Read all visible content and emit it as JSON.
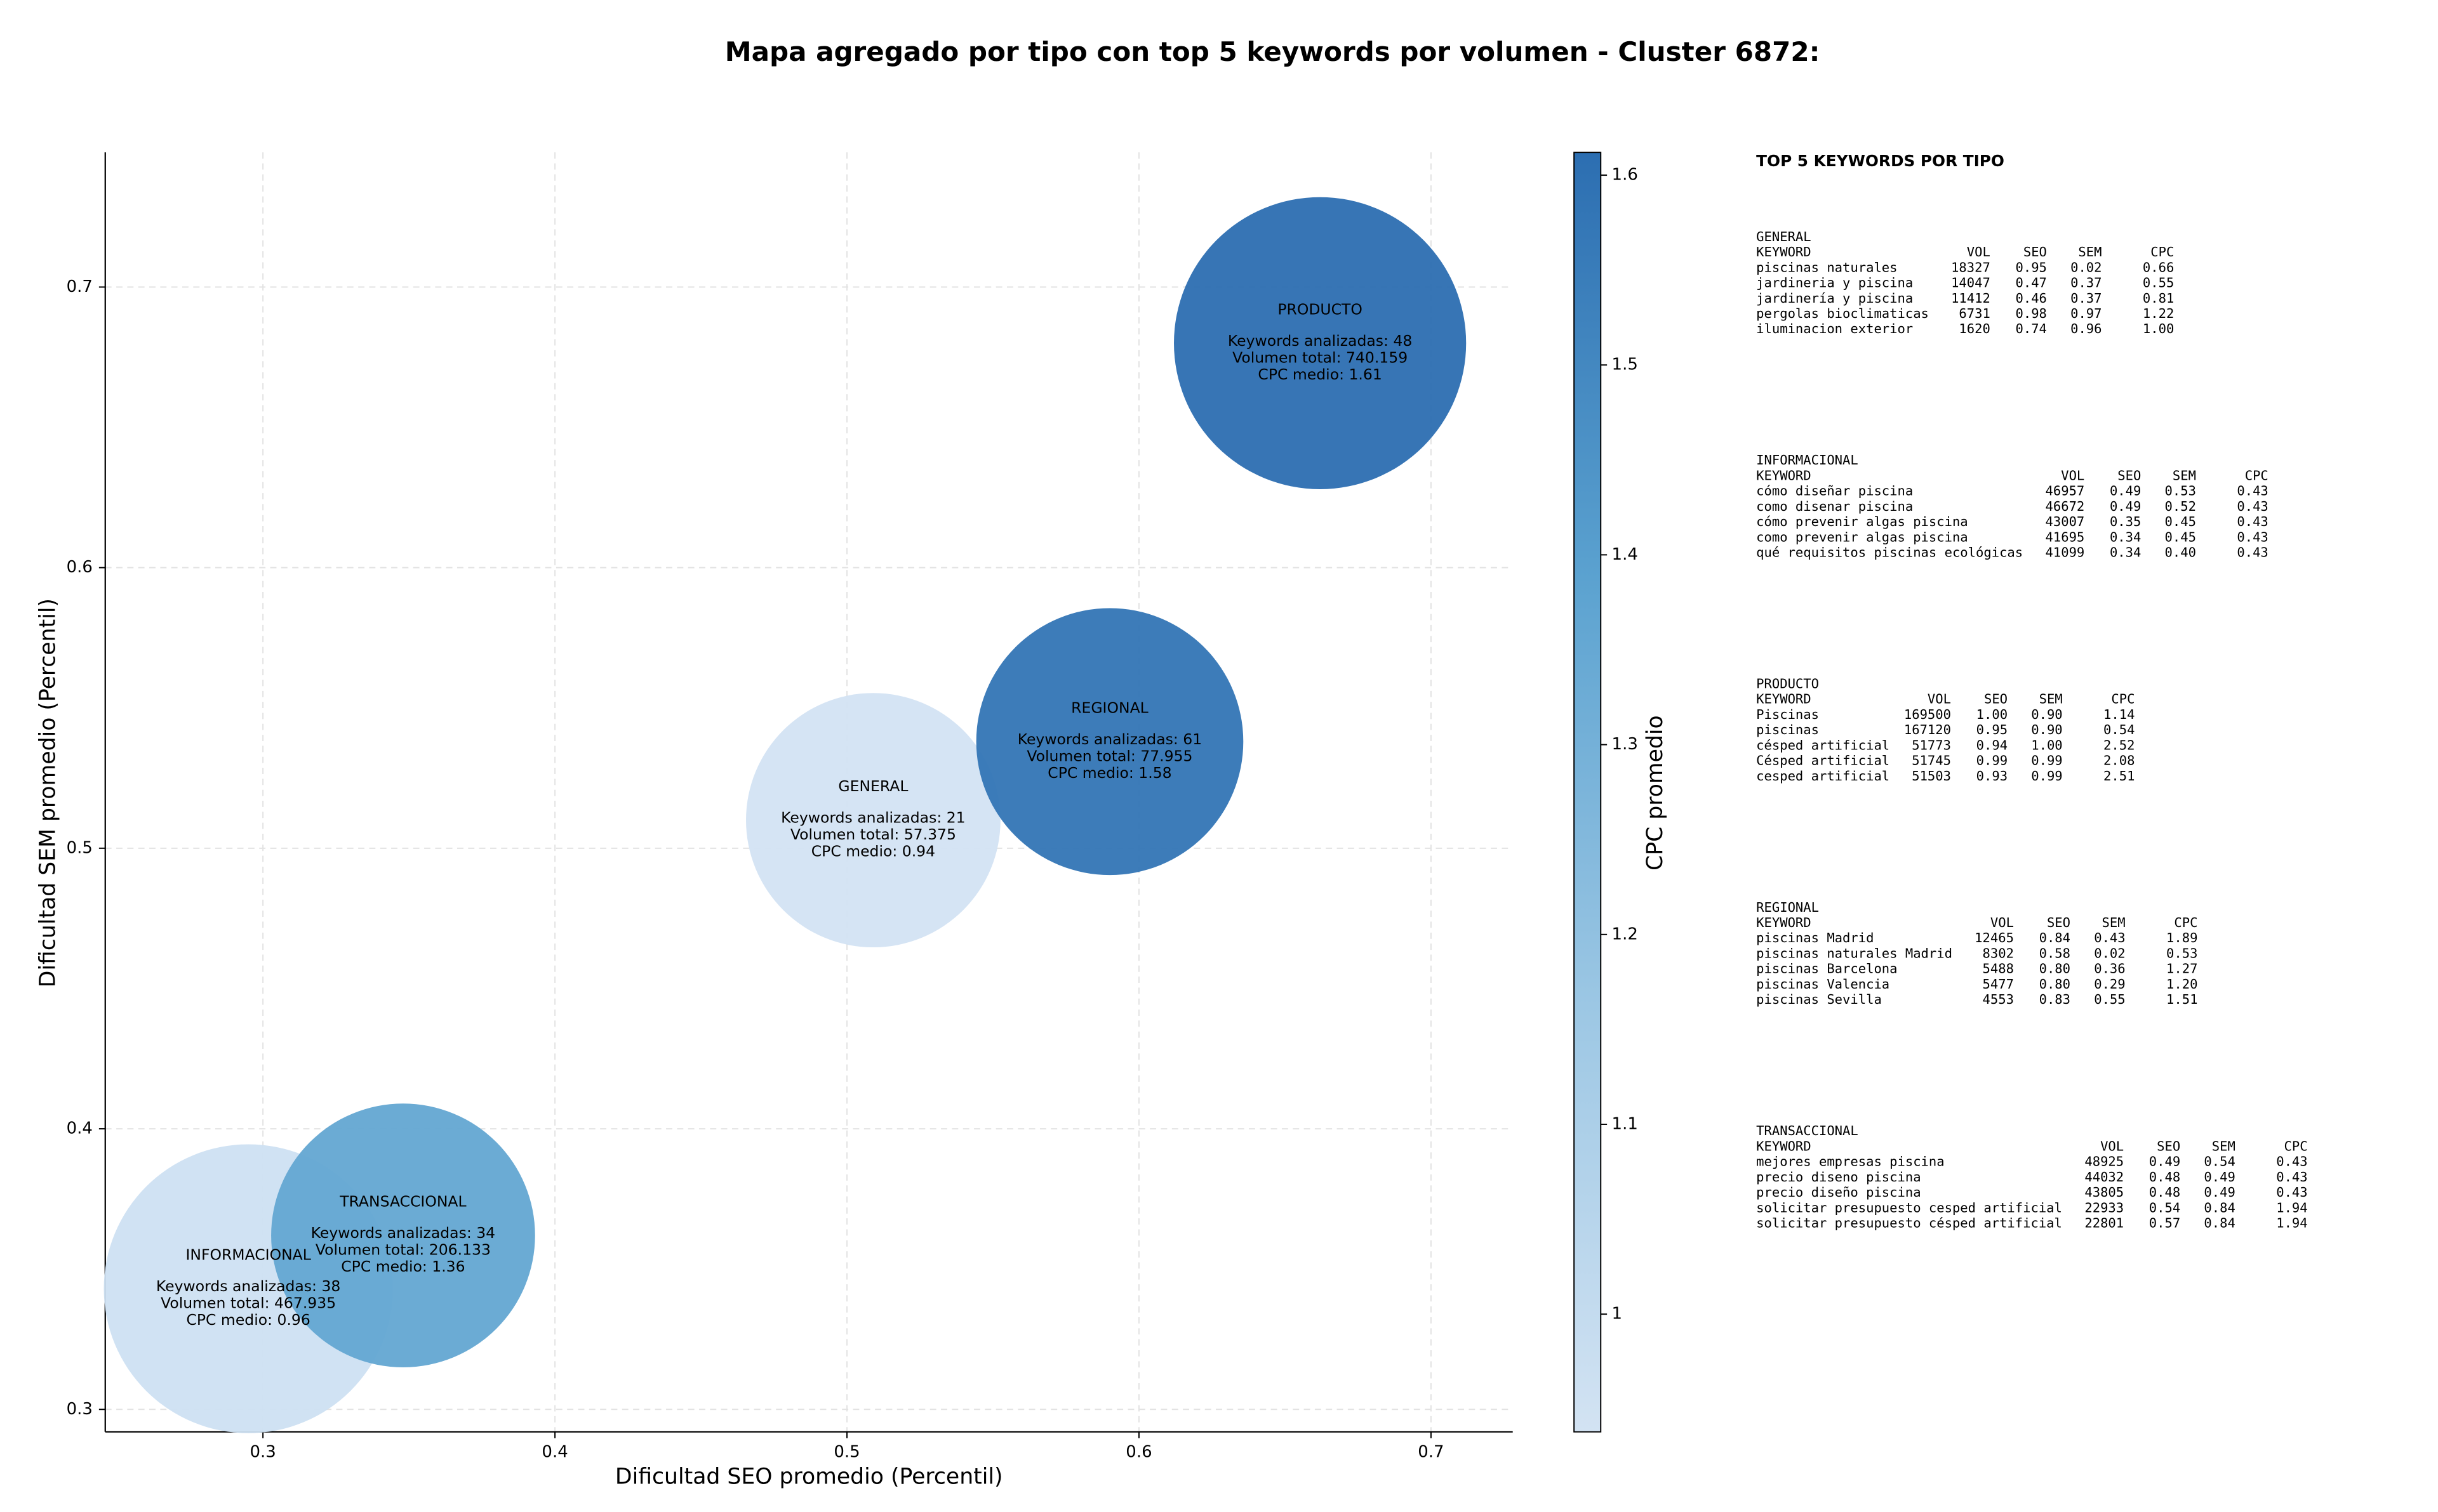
{
  "chart_data": {
    "type": "bubble",
    "title": "Mapa agregado por tipo con top 5 keywords por volumen - Cluster 6872:",
    "x_label": "Dificultad SEO promedio (Percentil)",
    "y_label": "Dificultad SEM promedio (Percentil)",
    "labels": [
      "GENERAL",
      "INFORMACIONAL",
      "PRODUCTO",
      "REGIONAL",
      "TRANSACCIONAL"
    ],
    "x": [
      0.509,
      0.295,
      0.662,
      0.59,
      0.348
    ],
    "values": [
      0.51,
      0.343,
      0.68,
      0.538,
      0.362
    ],
    "sizes": [
      81,
      92,
      93,
      85,
      84
    ],
    "color_values": [
      0.94,
      0.96,
      1.61,
      1.58,
      1.36
    ],
    "annotations": [
      [
        "Keywords analizadas: 21",
        "Volumen total: 57.375",
        "CPC medio: 0.94"
      ],
      [
        "Keywords analizadas: 38",
        "Volumen total: 467.935",
        "CPC medio: 0.96"
      ],
      [
        "Keywords analizadas: 48",
        "Volumen total: 740.159",
        "CPC medio: 1.61"
      ],
      [
        "Keywords analizadas: 61",
        "Volumen total: 77.955",
        "CPC medio: 1.58"
      ],
      [
        "Keywords analizadas: 34",
        "Volumen total: 206.133",
        "CPC medio: 1.36"
      ]
    ],
    "xlim": [
      0.246,
      0.728
    ],
    "ylim": [
      0.292,
      0.748
    ],
    "xticks": [
      0.3,
      0.4,
      0.5,
      0.6,
      0.7
    ],
    "yticks": [
      0.3,
      0.4,
      0.5,
      0.6,
      0.7
    ],
    "grid": true,
    "colorbar": {
      "label": "CPC promedio",
      "lim": [
        0.938,
        1.612
      ],
      "ticks": [
        1.0,
        1.1,
        1.2,
        1.3,
        1.4,
        1.5,
        1.6
      ],
      "colors": [
        "#d3e3f3",
        "#9cc7e4",
        "#5ba2d0",
        "#2c6eb1"
      ]
    }
  },
  "keyword_tables": {
    "title": "TOP 5 KEYWORDS POR TIPO",
    "header": [
      "KEYWORD",
      "VOL",
      "SEO",
      "SEM",
      "CPC"
    ],
    "sections": [
      {
        "name": "GENERAL",
        "rows": [
          [
            "piscinas naturales",
            "18327",
            "0.95",
            "0.02",
            "0.66"
          ],
          [
            "jardineria y piscina",
            "14047",
            "0.47",
            "0.37",
            "0.55"
          ],
          [
            "jardinería y piscina",
            "11412",
            "0.46",
            "0.37",
            "0.81"
          ],
          [
            "pergolas bioclimaticas",
            "6731",
            "0.98",
            "0.97",
            "1.22"
          ],
          [
            "iluminacion exterior",
            "1620",
            "0.74",
            "0.96",
            "1.00"
          ]
        ]
      },
      {
        "name": "INFORMACIONAL",
        "rows": [
          [
            "cómo diseñar piscina",
            "46957",
            "0.49",
            "0.53",
            "0.43"
          ],
          [
            "como disenar piscina",
            "46672",
            "0.49",
            "0.52",
            "0.43"
          ],
          [
            "cómo prevenir algas piscina",
            "43007",
            "0.35",
            "0.45",
            "0.43"
          ],
          [
            "como prevenir algas piscina",
            "41695",
            "0.34",
            "0.45",
            "0.43"
          ],
          [
            "qué requisitos piscinas ecológicas",
            "41099",
            "0.34",
            "0.40",
            "0.43"
          ]
        ]
      },
      {
        "name": "PRODUCTO",
        "rows": [
          [
            "Piscinas",
            "169500",
            "1.00",
            "0.90",
            "1.14"
          ],
          [
            "piscinas",
            "167120",
            "0.95",
            "0.90",
            "0.54"
          ],
          [
            "césped artificial",
            "51773",
            "0.94",
            "1.00",
            "2.52"
          ],
          [
            "Césped artificial",
            "51745",
            "0.99",
            "0.99",
            "2.08"
          ],
          [
            "cesped artificial",
            "51503",
            "0.93",
            "0.99",
            "2.51"
          ]
        ]
      },
      {
        "name": "REGIONAL",
        "rows": [
          [
            "piscinas Madrid",
            "12465",
            "0.84",
            "0.43",
            "1.89"
          ],
          [
            "piscinas naturales Madrid",
            "8302",
            "0.58",
            "0.02",
            "0.53"
          ],
          [
            "piscinas Barcelona",
            "5488",
            "0.80",
            "0.36",
            "1.27"
          ],
          [
            "piscinas Valencia",
            "5477",
            "0.80",
            "0.29",
            "1.20"
          ],
          [
            "piscinas Sevilla",
            "4553",
            "0.83",
            "0.55",
            "1.51"
          ]
        ]
      },
      {
        "name": "TRANSACCIONAL",
        "rows": [
          [
            "mejores empresas piscina",
            "48925",
            "0.49",
            "0.54",
            "0.43"
          ],
          [
            "precio diseno piscina",
            "44032",
            "0.48",
            "0.49",
            "0.43"
          ],
          [
            "precio diseño piscina",
            "43805",
            "0.48",
            "0.49",
            "0.43"
          ],
          [
            "solicitar presupuesto cesped artificial",
            "22933",
            "0.54",
            "0.84",
            "1.94"
          ],
          [
            "solicitar presupuesto césped artificial",
            "22801",
            "0.57",
            "0.84",
            "1.94"
          ]
        ]
      }
    ]
  }
}
